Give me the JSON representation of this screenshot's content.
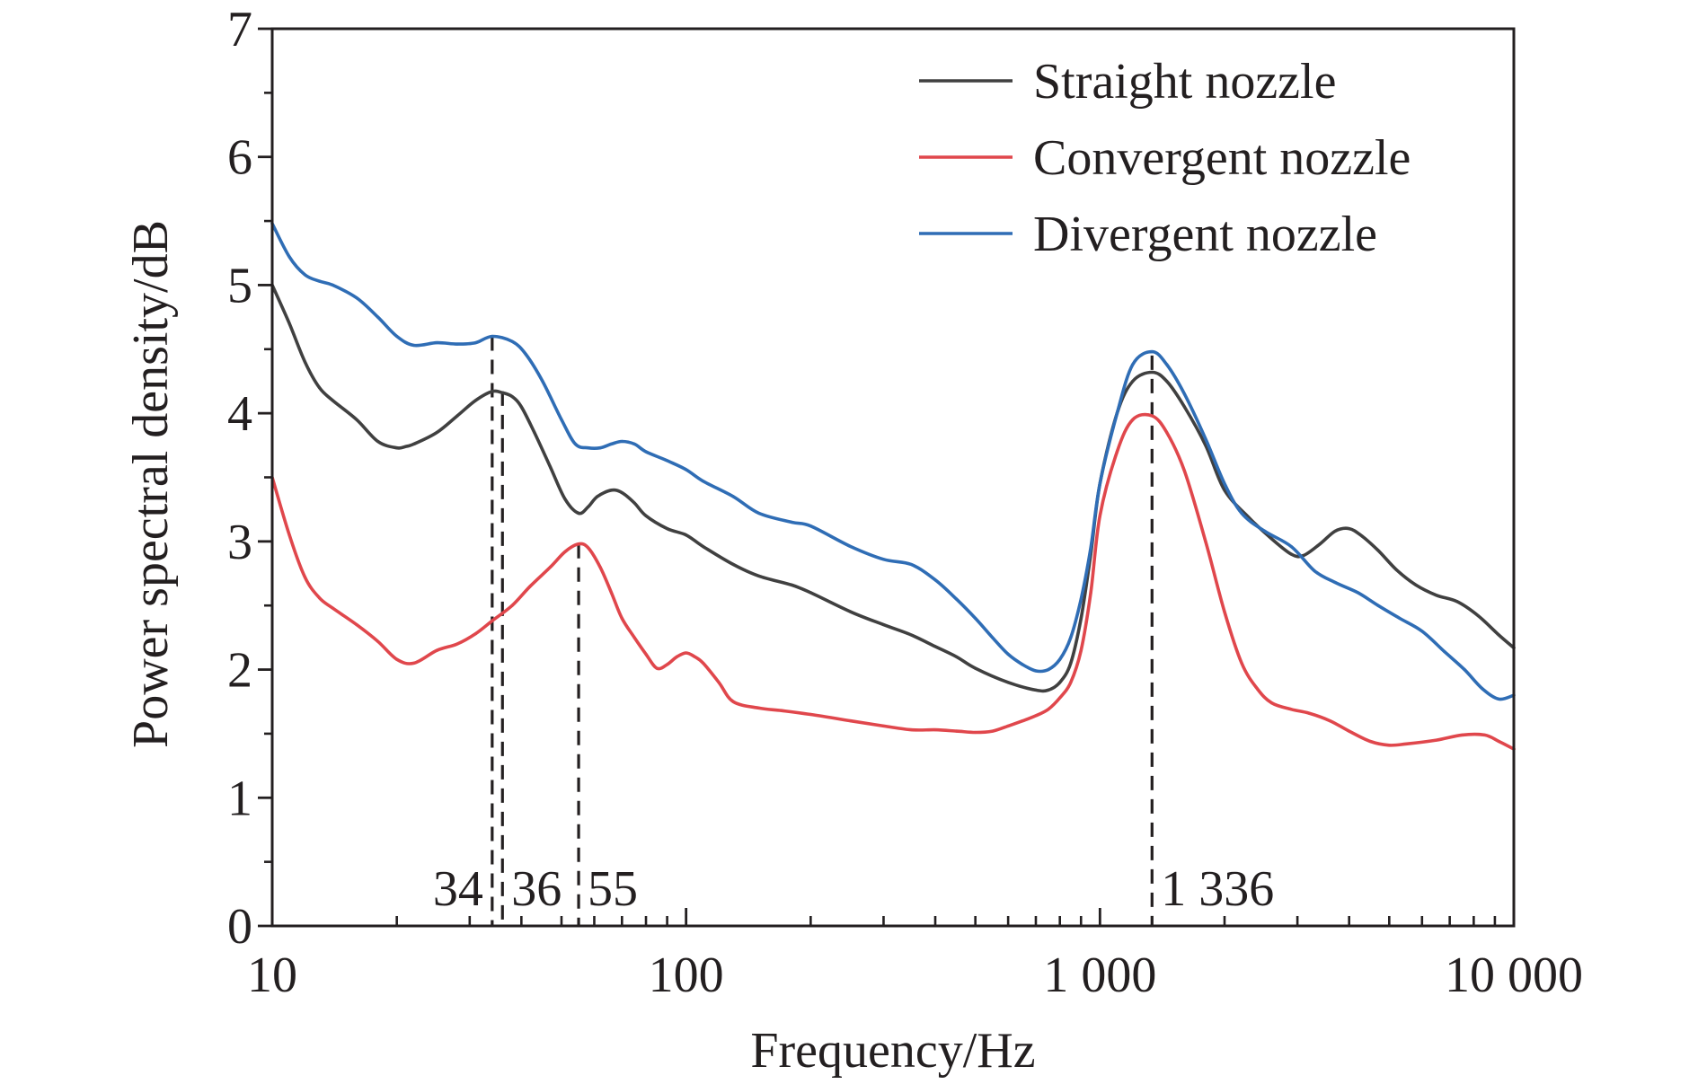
{
  "chart_data": {
    "type": "line",
    "xlabel": "Frequency/Hz",
    "ylabel": "Power spectral density/dB",
    "xscale": "log",
    "xlim": [
      10,
      10000
    ],
    "ylim": [
      0,
      7
    ],
    "xticks": [
      {
        "value": 10,
        "label": "10"
      },
      {
        "value": 100,
        "label": "100"
      },
      {
        "value": 1000,
        "label": "1 000"
      },
      {
        "value": 10000,
        "label": "10 000"
      }
    ],
    "yticks": [
      {
        "value": 0,
        "label": "0"
      },
      {
        "value": 1,
        "label": "1"
      },
      {
        "value": 2,
        "label": "2"
      },
      {
        "value": 3,
        "label": "3"
      },
      {
        "value": 4,
        "label": "4"
      },
      {
        "value": 5,
        "label": "5"
      },
      {
        "value": 6,
        "label": "6"
      },
      {
        "value": 7,
        "label": "7"
      }
    ],
    "grid": false,
    "legend_position": "top-right",
    "series": [
      {
        "name": "Straight nozzle",
        "color": "#404040",
        "x": [
          10,
          11,
          12,
          13,
          14,
          16,
          18,
          20,
          21,
          22,
          25,
          28,
          31,
          34,
          36,
          38,
          40,
          43,
          47,
          51,
          55,
          58,
          61,
          66,
          70,
          75,
          80,
          90,
          100,
          110,
          130,
          150,
          180,
          200,
          250,
          300,
          350,
          400,
          450,
          500,
          600,
          700,
          750,
          800,
          850,
          900,
          950,
          1000,
          1100,
          1200,
          1336,
          1450,
          1600,
          1800,
          2000,
          2300,
          2600,
          2900,
          3100,
          3400,
          3700,
          4000,
          4300,
          4700,
          5200,
          5800,
          6500,
          7300,
          8200,
          9200,
          10000
        ],
        "y": [
          5.0,
          4.7,
          4.4,
          4.2,
          4.1,
          3.95,
          3.78,
          3.73,
          3.74,
          3.76,
          3.85,
          3.98,
          4.1,
          4.17,
          4.16,
          4.13,
          4.05,
          3.85,
          3.58,
          3.33,
          3.22,
          3.27,
          3.35,
          3.4,
          3.38,
          3.3,
          3.2,
          3.1,
          3.05,
          2.96,
          2.82,
          2.73,
          2.66,
          2.6,
          2.45,
          2.35,
          2.27,
          2.18,
          2.1,
          2.01,
          1.9,
          1.84,
          1.84,
          1.9,
          2.05,
          2.4,
          2.9,
          3.45,
          4.0,
          4.25,
          4.32,
          4.25,
          4.05,
          3.75,
          3.4,
          3.18,
          3.02,
          2.9,
          2.89,
          2.98,
          3.08,
          3.1,
          3.04,
          2.93,
          2.78,
          2.66,
          2.58,
          2.53,
          2.42,
          2.27,
          2.17
        ]
      },
      {
        "name": "Convergent nozzle",
        "color": "#e0474c",
        "x": [
          10,
          11,
          12,
          13,
          14,
          16,
          18,
          20,
          22,
          25,
          28,
          31,
          34,
          38,
          42,
          47,
          51,
          55,
          58,
          62,
          66,
          70,
          75,
          80,
          85,
          90,
          95,
          100,
          105,
          110,
          120,
          130,
          150,
          170,
          200,
          250,
          300,
          350,
          400,
          450,
          500,
          550,
          600,
          650,
          700,
          750,
          800,
          850,
          900,
          950,
          1000,
          1100,
          1200,
          1336,
          1450,
          1600,
          1800,
          2000,
          2200,
          2400,
          2600,
          2900,
          3200,
          3600,
          4000,
          4500,
          5000,
          5500,
          6500,
          7500,
          8500,
          9200,
          10000
        ],
        "y": [
          3.5,
          3.05,
          2.72,
          2.56,
          2.48,
          2.35,
          2.22,
          2.08,
          2.05,
          2.15,
          2.2,
          2.28,
          2.38,
          2.5,
          2.65,
          2.8,
          2.92,
          2.98,
          2.95,
          2.8,
          2.6,
          2.4,
          2.25,
          2.12,
          2.01,
          2.04,
          2.1,
          2.13,
          2.1,
          2.05,
          1.9,
          1.75,
          1.7,
          1.68,
          1.65,
          1.6,
          1.56,
          1.53,
          1.53,
          1.52,
          1.51,
          1.52,
          1.56,
          1.6,
          1.64,
          1.69,
          1.78,
          1.9,
          2.15,
          2.6,
          3.2,
          3.7,
          3.95,
          3.98,
          3.85,
          3.55,
          3.0,
          2.45,
          2.05,
          1.85,
          1.74,
          1.69,
          1.66,
          1.6,
          1.52,
          1.44,
          1.41,
          1.42,
          1.45,
          1.49,
          1.49,
          1.44,
          1.38
        ]
      },
      {
        "name": "Divergent nozzle",
        "color": "#2f6db5",
        "x": [
          10,
          11,
          12,
          13,
          14,
          16,
          18,
          20,
          22,
          25,
          28,
          31,
          34,
          38,
          41,
          45,
          50,
          54,
          58,
          62,
          66,
          70,
          75,
          80,
          90,
          100,
          110,
          130,
          150,
          180,
          200,
          250,
          300,
          350,
          400,
          450,
          500,
          550,
          600,
          650,
          700,
          750,
          800,
          850,
          900,
          950,
          1000,
          1100,
          1200,
          1336,
          1450,
          1600,
          1800,
          2000,
          2200,
          2500,
          2900,
          3300,
          3700,
          4200,
          4700,
          5300,
          6000,
          6800,
          7600,
          8400,
          9200,
          10000
        ],
        "y": [
          5.48,
          5.22,
          5.08,
          5.03,
          5.0,
          4.9,
          4.75,
          4.6,
          4.53,
          4.55,
          4.54,
          4.55,
          4.6,
          4.56,
          4.46,
          4.25,
          3.95,
          3.76,
          3.73,
          3.73,
          3.76,
          3.78,
          3.76,
          3.7,
          3.63,
          3.56,
          3.47,
          3.35,
          3.22,
          3.15,
          3.12,
          2.96,
          2.86,
          2.82,
          2.7,
          2.55,
          2.4,
          2.25,
          2.12,
          2.04,
          1.99,
          2.0,
          2.08,
          2.25,
          2.55,
          2.95,
          3.45,
          4.0,
          4.38,
          4.48,
          4.38,
          4.15,
          3.8,
          3.45,
          3.22,
          3.08,
          2.96,
          2.77,
          2.68,
          2.6,
          2.5,
          2.4,
          2.3,
          2.14,
          2.0,
          1.85,
          1.77,
          1.8
        ]
      }
    ],
    "annotations": [
      {
        "x": 34,
        "y_top": 4.6,
        "label": "34",
        "side": "left"
      },
      {
        "x": 36,
        "y_top": 4.17,
        "label": "36",
        "side": "right"
      },
      {
        "x": 55,
        "y_top": 2.98,
        "label": "55",
        "side": "right"
      },
      {
        "x": 1336,
        "y_top": 4.45,
        "label": "1 336",
        "side": "right"
      }
    ],
    "annotation_style": "dashed vertical line"
  }
}
